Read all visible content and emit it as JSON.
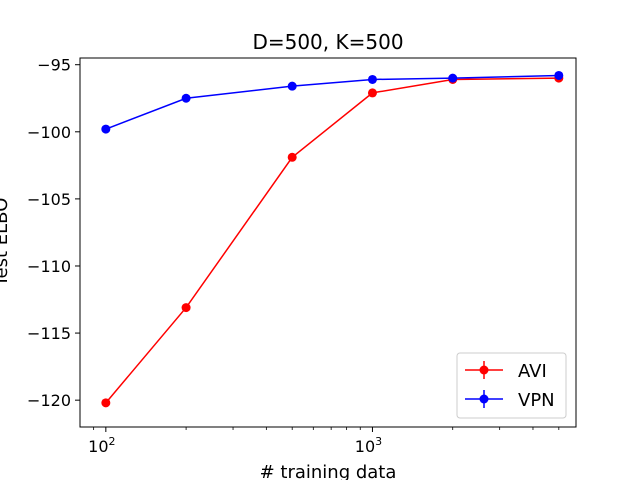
{
  "chart_data": {
    "type": "line",
    "title": "D=500, K=500",
    "xlabel": "# training data",
    "ylabel": "Test ELBO",
    "xscale": "log",
    "xlim": [
      80,
      5800
    ],
    "ylim": [
      -122,
      -94.5
    ],
    "grid": false,
    "legend_position": "lower-right",
    "x": [
      100,
      200,
      500,
      1000,
      2000,
      5000
    ],
    "x_ticks": [
      {
        "value": 100,
        "base": "10",
        "exp": "2"
      },
      {
        "value": 1000,
        "base": "10",
        "exp": "3"
      }
    ],
    "x_minor_ticks": [
      90,
      200,
      300,
      400,
      500,
      600,
      700,
      800,
      900,
      2000,
      3000,
      4000,
      5000
    ],
    "y_ticks": [
      {
        "value": -95,
        "label": "−95"
      },
      {
        "value": -100,
        "label": "−100"
      },
      {
        "value": -105,
        "label": "−105"
      },
      {
        "value": -110,
        "label": "−110"
      },
      {
        "value": -115,
        "label": "−115"
      },
      {
        "value": -120,
        "label": "−120"
      }
    ],
    "series": [
      {
        "name": "AVI",
        "color": "#ff0000",
        "values": [
          -120.2,
          -113.1,
          -101.9,
          -97.1,
          -96.1,
          -96.0
        ]
      },
      {
        "name": "VPN",
        "color": "#0000ff",
        "values": [
          -99.8,
          -97.5,
          -96.6,
          -96.1,
          -96.0,
          -95.8
        ]
      }
    ]
  }
}
